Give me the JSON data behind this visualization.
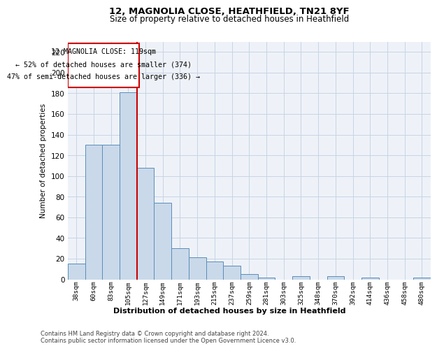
{
  "title1": "12, MAGNOLIA CLOSE, HEATHFIELD, TN21 8YF",
  "title2": "Size of property relative to detached houses in Heathfield",
  "xlabel": "Distribution of detached houses by size in Heathfield",
  "ylabel": "Number of detached properties",
  "footnote1": "Contains HM Land Registry data © Crown copyright and database right 2024.",
  "footnote2": "Contains public sector information licensed under the Open Government Licence v3.0.",
  "annotation_line1": "12 MAGNOLIA CLOSE: 119sqm",
  "annotation_line2": "← 52% of detached houses are smaller (374)",
  "annotation_line3": "47% of semi-detached houses are larger (336) →",
  "bar_color": "#c9d9ea",
  "bar_edge_color": "#5b8db8",
  "redline_color": "#cc0000",
  "categories": [
    "38sqm",
    "60sqm",
    "83sqm",
    "105sqm",
    "127sqm",
    "149sqm",
    "171sqm",
    "193sqm",
    "215sqm",
    "237sqm",
    "259sqm",
    "281sqm",
    "303sqm",
    "325sqm",
    "348sqm",
    "370sqm",
    "392sqm",
    "414sqm",
    "436sqm",
    "458sqm",
    "480sqm"
  ],
  "values": [
    15,
    130,
    130,
    181,
    108,
    74,
    30,
    21,
    17,
    13,
    5,
    2,
    0,
    3,
    0,
    3,
    0,
    2,
    0,
    0,
    2
  ],
  "redline_index": 4,
  "ylim": [
    0,
    230
  ],
  "yticks": [
    0,
    20,
    40,
    60,
    80,
    100,
    120,
    140,
    160,
    180,
    200,
    220
  ],
  "background_color": "#eef2f8",
  "grid_color": "#c8d4e4",
  "title1_fontsize": 9.5,
  "title2_fontsize": 8.5
}
